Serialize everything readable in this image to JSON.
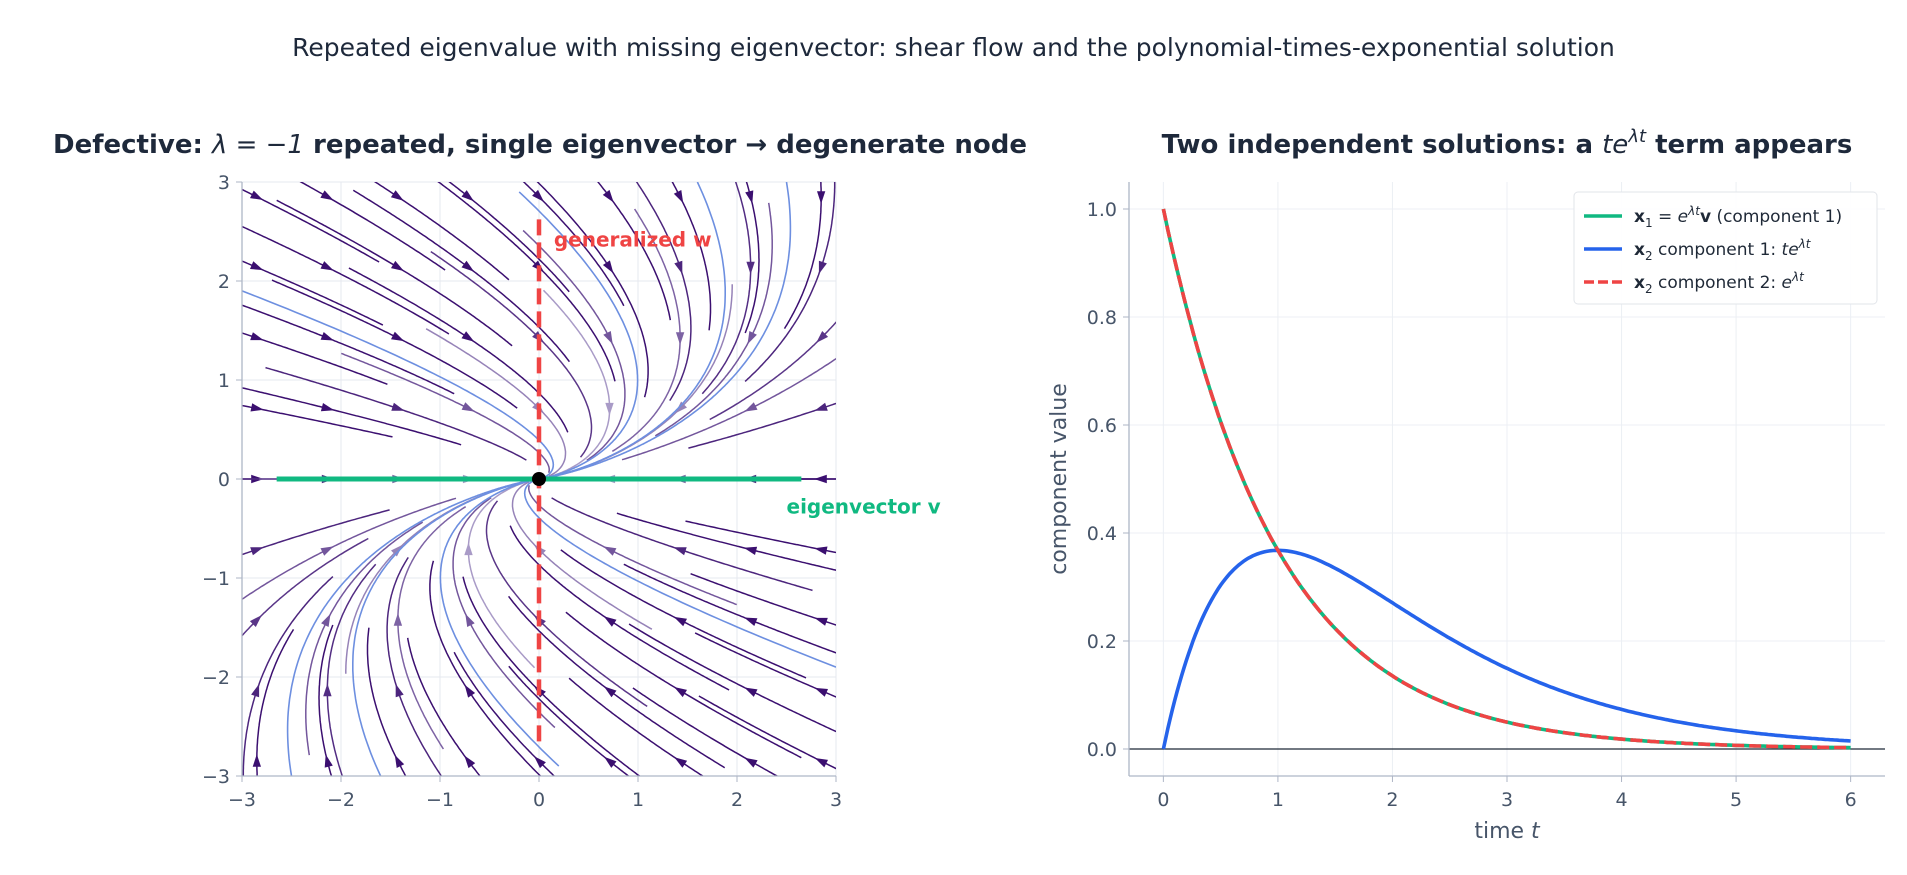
{
  "suptitle": "Repeated eigenvalue with missing eigenvector: shear flow and the polynomial-times-exponential solution",
  "colors": {
    "eigenvector": "#10b981",
    "generalized": "#ef4444",
    "x2_comp1": "#2563eb",
    "trajectory": "#6d8fe0",
    "stream_dark": "#3b0f70",
    "stream_light": "#dcdcf0"
  },
  "chart_data": [
    {
      "type": "streamplot",
      "title_prefix": "Defective: ",
      "title_math": "λ = −1",
      "title_suffix": " repeated, single eigenvector  →  degenerate node",
      "system": {
        "lambda": -1,
        "matrix": [
          [
            -1,
            1
          ],
          [
            0,
            -1
          ]
        ]
      },
      "xlim": [
        -3,
        3
      ],
      "ylim": [
        -3,
        3
      ],
      "xticks": [
        "−3",
        "−2",
        "−1",
        "0",
        "1",
        "2",
        "3"
      ],
      "yticks": [
        "−3",
        "−2",
        "−1",
        "0",
        "1",
        "2",
        "3"
      ],
      "xtick_values": [
        -3,
        -2,
        -1,
        0,
        1,
        2,
        3
      ],
      "ytick_values": [
        -3,
        -2,
        -1,
        0,
        1,
        2,
        3
      ],
      "grid": true,
      "fixed_point": [
        0,
        0
      ],
      "eigenvector_label": "eigenvector v",
      "generalized_label": "generalized w",
      "eigenvector_line": {
        "x": [
          -2.65,
          2.65
        ],
        "y": [
          0,
          0
        ]
      },
      "generalized_line": {
        "x": [
          0,
          0
        ],
        "y": [
          -2.65,
          2.65
        ]
      },
      "trajectory_starts": [
        [
          -3,
          1.9
        ],
        [
          3,
          -1.9
        ],
        [
          -0.2,
          2.9
        ],
        [
          0.2,
          -2.9
        ],
        [
          1.6,
          3
        ],
        [
          -1.6,
          -3
        ],
        [
          2.5,
          3
        ],
        [
          -2.5,
          -3
        ]
      ]
    },
    {
      "type": "line",
      "title_prefix": "Two independent solutions: a ",
      "title_math_base": "te",
      "title_math_sup": "λt",
      "title_suffix": " term appears",
      "xlabel_text": "time ",
      "xlabel_var": "t",
      "ylabel": "component value",
      "xlim": [
        -0.3,
        6.3
      ],
      "ylim": [
        -0.05,
        1.05
      ],
      "xticks": [
        "0",
        "1",
        "2",
        "3",
        "4",
        "5",
        "6"
      ],
      "xtick_values": [
        0,
        1,
        2,
        3,
        4,
        5,
        6
      ],
      "yticks": [
        "0.0",
        "0.2",
        "0.4",
        "0.6",
        "0.8",
        "1.0"
      ],
      "ytick_values": [
        0,
        0.2,
        0.4,
        0.6,
        0.8,
        1.0
      ],
      "grid": true,
      "legend_placement": "top-right",
      "t_range": [
        0,
        6
      ],
      "series": [
        {
          "name": "x₁ = e^{λt} v (component 1)",
          "legend_parts": [
            [
              "b",
              "x"
            ],
            [
              "sub",
              "1"
            ],
            [
              "n",
              " = "
            ],
            [
              "i",
              "e"
            ],
            [
              "sup",
              "λt"
            ],
            [
              "b",
              "v"
            ],
            [
              "n",
              " (component 1)"
            ]
          ],
          "formula": "exp(-t)",
          "color": "#10b981",
          "style": "solid"
        },
        {
          "name": "x₂ component 1: t e^{λt}",
          "legend_parts": [
            [
              "b",
              "x"
            ],
            [
              "sub",
              "2"
            ],
            [
              "n",
              " component 1: "
            ],
            [
              "i",
              "te"
            ],
            [
              "sup",
              "λt"
            ]
          ],
          "formula": "t*exp(-t)",
          "color": "#2563eb",
          "style": "solid"
        },
        {
          "name": "x₂ component 2: e^{λt}",
          "legend_parts": [
            [
              "b",
              "x"
            ],
            [
              "sub",
              "2"
            ],
            [
              "n",
              " component 2: "
            ],
            [
              "i",
              "e"
            ],
            [
              "sup",
              "λt"
            ]
          ],
          "formula": "exp(-t)",
          "color": "#ef4444",
          "style": "dashed"
        }
      ]
    }
  ]
}
